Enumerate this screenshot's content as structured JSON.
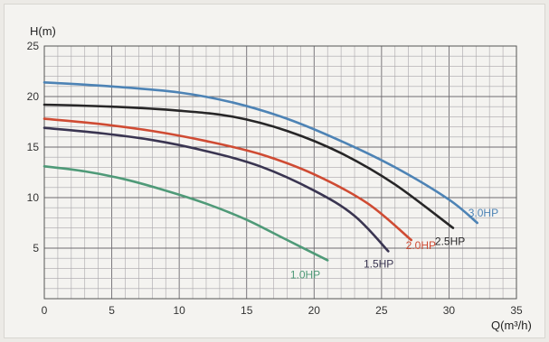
{
  "chart_data": {
    "type": "line",
    "ylabel": "H(m)",
    "xlabel": "Q(m³/h)",
    "xlim": [
      0,
      35
    ],
    "ylim": [
      0,
      25
    ],
    "x_ticks": [
      0,
      5,
      10,
      15,
      20,
      25,
      30,
      35
    ],
    "y_ticks": [
      5,
      10,
      15,
      20,
      25
    ],
    "grid": true,
    "series": [
      {
        "name": "1.0HP",
        "color": "#4f9a78",
        "points": [
          [
            0,
            13.1
          ],
          [
            3,
            12.6
          ],
          [
            6,
            11.8
          ],
          [
            9,
            10.7
          ],
          [
            12,
            9.4
          ],
          [
            15,
            7.8
          ],
          [
            18,
            5.8
          ],
          [
            21,
            3.8
          ]
        ]
      },
      {
        "name": "1.5HP",
        "color": "#3a3551",
        "points": [
          [
            0,
            16.9
          ],
          [
            4,
            16.4
          ],
          [
            8,
            15.7
          ],
          [
            12,
            14.6
          ],
          [
            16,
            13.1
          ],
          [
            20,
            10.7
          ],
          [
            23,
            8.2
          ],
          [
            25.5,
            4.7
          ]
        ]
      },
      {
        "name": "2.0HP",
        "color": "#cf4b33",
        "points": [
          [
            0,
            17.8
          ],
          [
            4,
            17.3
          ],
          [
            8,
            16.6
          ],
          [
            12,
            15.6
          ],
          [
            16,
            14.3
          ],
          [
            20,
            12.3
          ],
          [
            24,
            9.4
          ],
          [
            27.2,
            5.8
          ]
        ]
      },
      {
        "name": "2.5HP",
        "color": "#272627",
        "points": [
          [
            0,
            19.2
          ],
          [
            5,
            19.0
          ],
          [
            10,
            18.6
          ],
          [
            14,
            18.0
          ],
          [
            18,
            16.6
          ],
          [
            22,
            14.4
          ],
          [
            26,
            11.3
          ],
          [
            30.3,
            7.0
          ]
        ]
      },
      {
        "name": "3.0HP",
        "color": "#4d83b5",
        "points": [
          [
            0,
            21.4
          ],
          [
            5,
            21.0
          ],
          [
            10,
            20.4
          ],
          [
            14,
            19.4
          ],
          [
            18,
            17.8
          ],
          [
            22,
            15.6
          ],
          [
            26,
            13.0
          ],
          [
            30,
            9.8
          ],
          [
            32.1,
            7.5
          ]
        ]
      }
    ]
  }
}
